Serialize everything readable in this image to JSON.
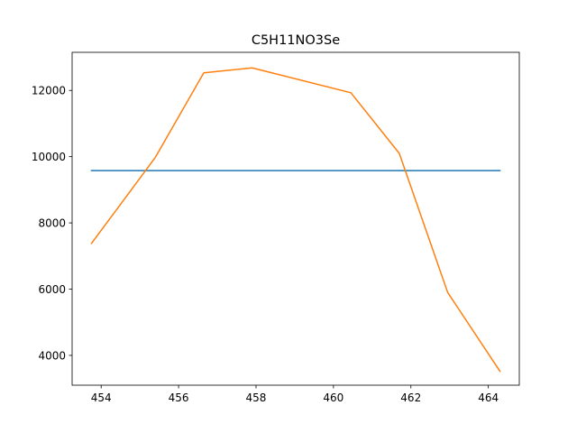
{
  "chart_data": {
    "type": "line",
    "title": "C5H11NO3Se",
    "xlabel": "",
    "ylabel": "",
    "xlim": [
      453.25,
      464.8
    ],
    "ylim": [
      3100,
      13150
    ],
    "xticks": [
      454,
      456,
      458,
      460,
      462,
      464
    ],
    "yticks": [
      4000,
      6000,
      8000,
      10000,
      12000
    ],
    "grid": false,
    "legend": "none",
    "series": [
      {
        "color": "#1f77b4",
        "x": [
          453.75,
          464.3
        ],
        "y": [
          9580,
          9580
        ]
      },
      {
        "color": "#ff7f0e",
        "x": [
          453.75,
          455.4,
          456.65,
          457.9,
          460.45,
          461.7,
          462.95,
          464.3
        ],
        "y": [
          7380,
          9980,
          12530,
          12680,
          11930,
          10100,
          5900,
          3520
        ]
      }
    ]
  }
}
